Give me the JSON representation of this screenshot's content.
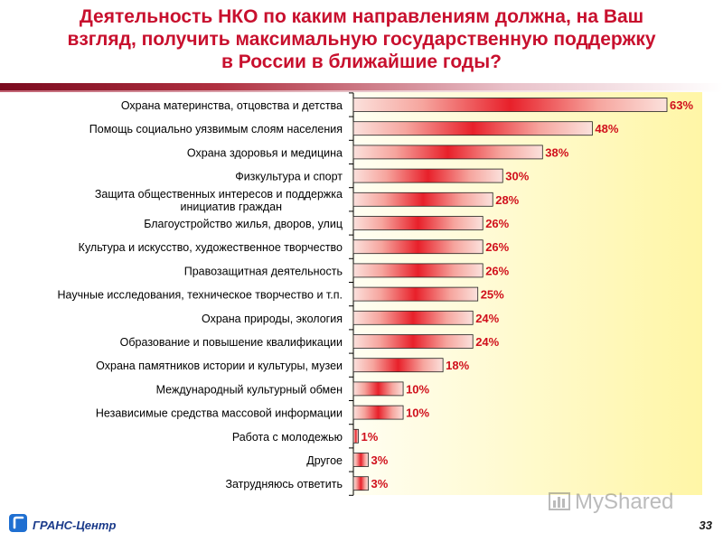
{
  "title": {
    "line1": "Деятельность НКО по каким направлениям должна, на Ваш",
    "line2": "взгляд, получить максимальную государственную поддержку",
    "line3": "в России в ближайшие годы?"
  },
  "footer": {
    "org": "ГРАНС-Центр",
    "page": "33"
  },
  "watermark": {
    "text": "MyShared"
  },
  "colors": {
    "title": "#c8102e",
    "bar_center": "#e8202a",
    "bar_edge": "#fbd9d4",
    "bar_border": "#222222",
    "value_label": "#d0101c",
    "panel": "#fff6a6"
  },
  "chart_data": {
    "type": "bar",
    "orientation": "horizontal",
    "unit": "%",
    "xlim": [
      0,
      63
    ],
    "grid": false,
    "legend": "none",
    "categories": [
      "Охрана материнства, отцовства и детства",
      "Помощь социально уязвимым слоям населения",
      "Охрана здоровья и медицина",
      "Физкультура и спорт",
      "Защита общественных интересов и поддержка инициатив граждан",
      "Благоустройство жилья, дворов, улиц",
      "Культура и искусство, художественное творчество",
      "Правозащитная деятельность",
      "Научные исследования, техническое творчество и т.п.",
      "Охрана природы, экология",
      "Образование и повышение квалификации",
      "Охрана памятников истории и культуры, музеи",
      "Международный культурный обмен",
      "Независимые средства массовой информации",
      "Работа с молодежью",
      "Другое",
      "Затрудняюсь ответить"
    ],
    "values": [
      63,
      48,
      38,
      30,
      28,
      26,
      26,
      26,
      25,
      24,
      24,
      18,
      10,
      10,
      1,
      3,
      3
    ],
    "value_labels": [
      "63%",
      "48%",
      "38%",
      "30%",
      "28%",
      "26%",
      "26%",
      "26%",
      "25%",
      "24%",
      "24%",
      "18%",
      "10%",
      "10%",
      "1%",
      "3%",
      "3%"
    ]
  }
}
